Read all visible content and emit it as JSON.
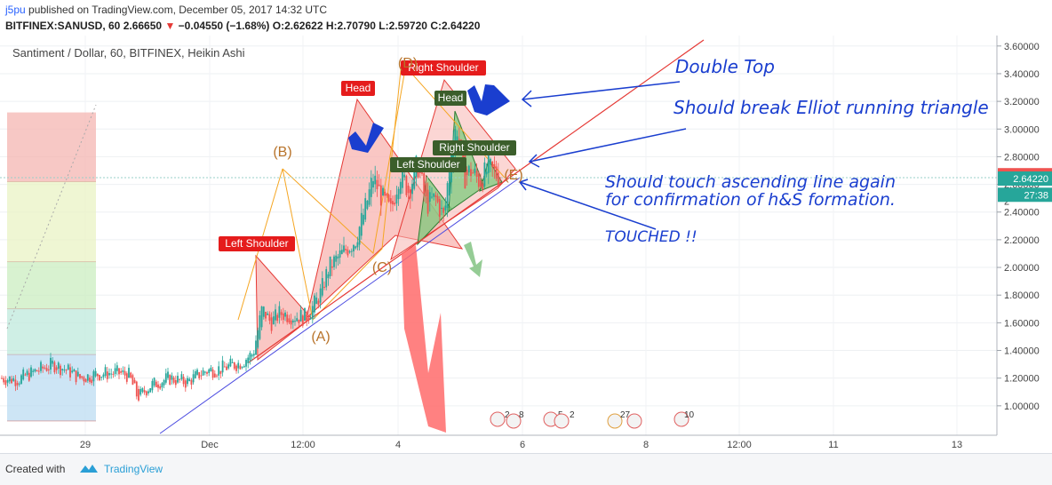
{
  "header": {
    "user": "j5pu",
    "published": "published on TradingView.com, December 05, 2017 14:32 UTC",
    "symbol": "BITFINEX:SANUSD, 60",
    "last": "2.66650",
    "change": "−0.04550 (−1.68%)",
    "o_label": "O:",
    "o": "2.62622",
    "h_label": "H:",
    "h": "2.70790",
    "l_label": "L:",
    "l": "2.59720",
    "c_label": "C:",
    "c": "2.64220"
  },
  "footer": {
    "created": "Created with",
    "brand": "TradingView"
  },
  "colors": {
    "up": "#26a69a",
    "down": "#ef5350",
    "accent": "#1a3ecf"
  },
  "chart_data": {
    "type": "candlestick",
    "title": "Santiment / Dollar, 60, BITFINEX, Heikin Ashi",
    "y_axis": {
      "min": 0.8,
      "max": 3.65,
      "position": "right",
      "ticks": [
        "3.60000",
        "3.40000",
        "3.20000",
        "3.00000",
        "2.80000",
        "2.60000",
        "2.40000",
        "2.20000",
        "2.00000",
        "1.80000",
        "1.60000",
        "1.40000",
        "1.20000",
        "1.00000"
      ]
    },
    "x_axis": {
      "ticks": [
        "29",
        "Dec",
        "12:00",
        "4",
        "6",
        "8",
        "12:00",
        "11",
        "13"
      ]
    },
    "price_labels": [
      {
        "value": 2.6665,
        "text": "2.66650",
        "color": "#ef5350"
      },
      {
        "value": 2.6422,
        "text": "2.64220",
        "color": "#26a69a"
      },
      {
        "value": 2.525,
        "text": "27:38",
        "color": "#26a69a"
      }
    ],
    "axis_cut_text": "2",
    "series": [
      {
        "name": "price",
        "points": [
          [
            0,
            1.2
          ],
          [
            20,
            1.19
          ],
          [
            40,
            1.25
          ],
          [
            60,
            1.3
          ],
          [
            75,
            1.26
          ],
          [
            90,
            1.2
          ],
          [
            110,
            1.23
          ],
          [
            130,
            1.24
          ],
          [
            145,
            1.22
          ],
          [
            155,
            1.06
          ],
          [
            170,
            1.15
          ],
          [
            190,
            1.2
          ],
          [
            210,
            1.17
          ],
          [
            230,
            1.25
          ],
          [
            250,
            1.27
          ],
          [
            270,
            1.31
          ],
          [
            285,
            1.38
          ],
          [
            295,
            1.7
          ],
          [
            305,
            1.6
          ],
          [
            315,
            1.67
          ],
          [
            330,
            1.65
          ],
          [
            345,
            1.64
          ],
          [
            360,
            1.8
          ],
          [
            370,
            2.0
          ],
          [
            385,
            2.1
          ],
          [
            400,
            2.2
          ],
          [
            410,
            2.4
          ],
          [
            420,
            2.65
          ],
          [
            430,
            2.5
          ],
          [
            440,
            2.4
          ],
          [
            450,
            2.7
          ],
          [
            460,
            2.55
          ],
          [
            470,
            2.75
          ],
          [
            480,
            2.45
          ],
          [
            490,
            2.5
          ],
          [
            500,
            2.35
          ],
          [
            508,
            2.9
          ],
          [
            515,
            3.02
          ],
          [
            522,
            2.65
          ],
          [
            530,
            2.7
          ],
          [
            540,
            2.62
          ],
          [
            550,
            2.72
          ],
          [
            558,
            2.67
          ],
          [
            563,
            2.66
          ]
        ]
      }
    ],
    "fib_zones": [
      {
        "from": 3.12,
        "to": 2.62,
        "color": "#f4b6b2"
      },
      {
        "from": 2.62,
        "to": 2.04,
        "color": "#eaf3c4"
      },
      {
        "from": 2.04,
        "to": 1.7,
        "color": "#cbeec0"
      },
      {
        "from": 1.7,
        "to": 1.37,
        "color": "#bfeadc"
      },
      {
        "from": 1.37,
        "to": 0.89,
        "color": "#bcdcf2"
      }
    ],
    "labels": [
      {
        "text": "Left Shoulder",
        "style": "red"
      },
      {
        "text": "Head",
        "style": "red"
      },
      {
        "text": "Right Shoulder",
        "style": "red"
      },
      {
        "text": "Head",
        "style": "green"
      },
      {
        "text": "Left Shoulder",
        "style": "green"
      },
      {
        "text": "Right Shoulder",
        "style": "green"
      }
    ],
    "wave_labels": [
      "(A)",
      "(B)",
      "(C)",
      "(D)",
      "(E)"
    ],
    "annotations": [
      "Double Top",
      "Should break Elliot running triangle",
      "Should touch ascending line again",
      "for confirmation of h&S formation.",
      "TOUCHED !!"
    ],
    "event_markers": [
      "2",
      "8",
      "5",
      "2",
      "27",
      "10"
    ]
  }
}
